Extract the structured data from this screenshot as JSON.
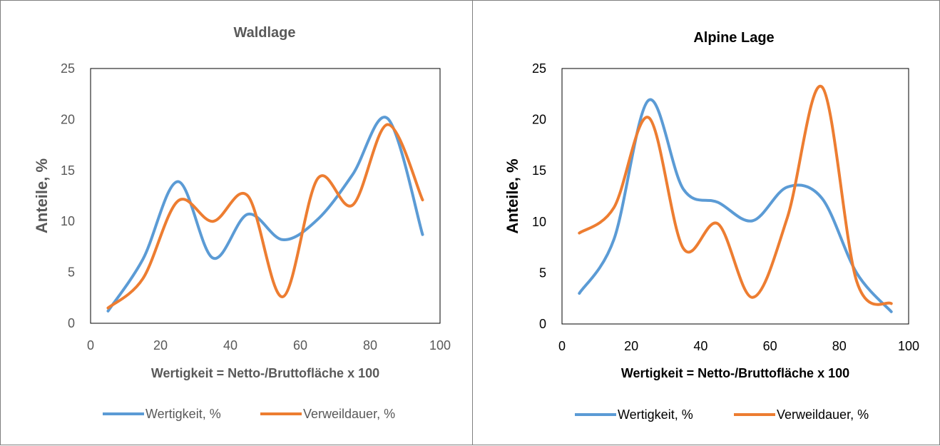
{
  "chart_data": [
    {
      "type": "line",
      "title": "Waldlage",
      "xlabel": "Wertigkeit = Netto-/Bruttofläche x 100",
      "ylabel": "Anteile, %",
      "xlim": [
        0,
        100
      ],
      "ylim": [
        0,
        25
      ],
      "x_ticks": [
        "0",
        "20",
        "40",
        "60",
        "80",
        "100"
      ],
      "y_ticks": [
        "0",
        "5",
        "10",
        "15",
        "20",
        "25"
      ],
      "grid": false,
      "legend_position": "bottom",
      "smooth": true,
      "series": [
        {
          "name": "Wertigkeit, %",
          "color": "#5b9bd5",
          "x": [
            5,
            15,
            25,
            35,
            45,
            55,
            65,
            75,
            85,
            95
          ],
          "values": [
            1.2,
            6.3,
            13.9,
            6.4,
            10.7,
            8.2,
            10.2,
            14.6,
            20.1,
            8.7
          ]
        },
        {
          "name": "Verweildauer, %",
          "color": "#ed7d31",
          "x": [
            5,
            15,
            25,
            35,
            45,
            55,
            65,
            75,
            85,
            95
          ],
          "values": [
            1.5,
            4.4,
            12.0,
            10.0,
            12.5,
            2.6,
            14.2,
            11.6,
            19.5,
            12.1
          ]
        }
      ]
    },
    {
      "type": "line",
      "title": "Alpine Lage",
      "xlabel": "Wertigkeit = Netto-/Bruttofläche x 100",
      "ylabel": "Anteile, %",
      "xlim": [
        0,
        100
      ],
      "ylim": [
        0,
        25
      ],
      "x_ticks": [
        "0",
        "20",
        "40",
        "60",
        "80",
        "100"
      ],
      "y_ticks": [
        "0",
        "5",
        "10",
        "15",
        "20",
        "25"
      ],
      "grid": false,
      "legend_position": "bottom",
      "smooth": true,
      "series": [
        {
          "name": "Wertigkeit, %",
          "color": "#5b9bd5",
          "x": [
            5,
            15,
            25,
            35,
            45,
            55,
            65,
            75,
            85,
            95
          ],
          "values": [
            3.0,
            8.3,
            21.9,
            13.2,
            11.9,
            10.1,
            13.4,
            12.3,
            5.0,
            1.2
          ]
        },
        {
          "name": "Verweildauer, %",
          "color": "#ed7d31",
          "x": [
            5,
            15,
            25,
            35,
            45,
            55,
            65,
            75,
            85,
            95
          ],
          "values": [
            8.9,
            11.4,
            20.2,
            7.4,
            9.8,
            2.6,
            10.4,
            23.2,
            4.2,
            2.0
          ]
        }
      ]
    }
  ]
}
